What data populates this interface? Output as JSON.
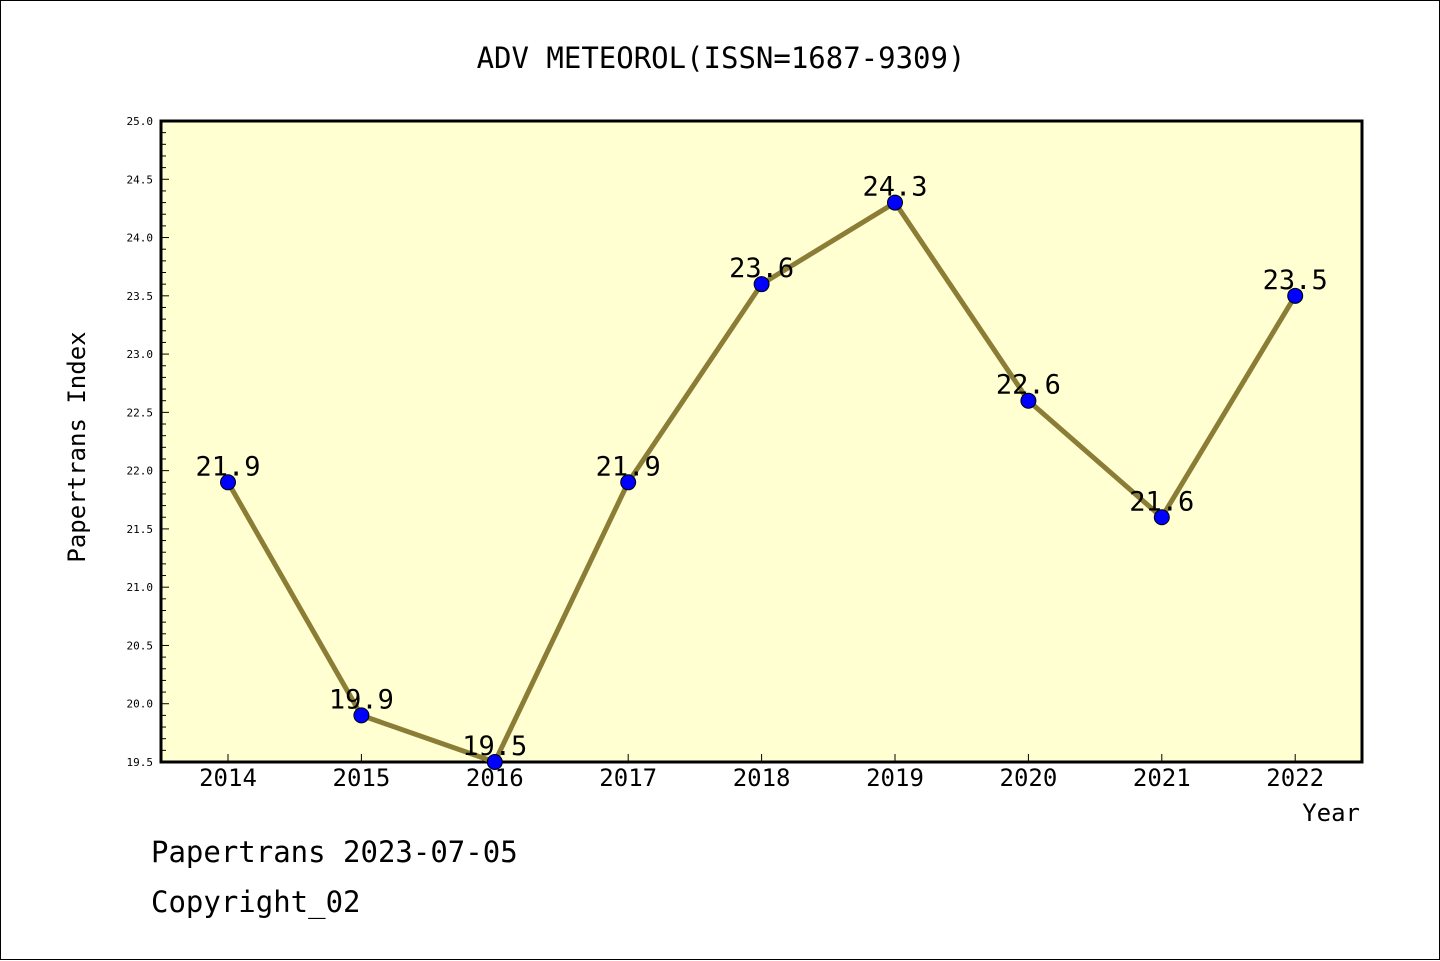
{
  "chart_data": {
    "type": "line",
    "title": "ADV METEOROL(ISSN=1687-9309)",
    "xlabel": "Year",
    "ylabel": "Papertrans Index",
    "categories": [
      "2014",
      "2015",
      "2016",
      "2017",
      "2018",
      "2019",
      "2020",
      "2021",
      "2022"
    ],
    "series": [
      {
        "values": [
          21.9,
          19.9,
          19.5,
          21.9,
          23.6,
          24.3,
          22.6,
          21.6,
          23.5
        ],
        "data_labels": [
          "21.9",
          "19.9",
          "19.5",
          "21.9",
          "23.6",
          "24.3",
          "22.6",
          "21.6",
          "23.5"
        ]
      }
    ],
    "ylim": [
      19.5,
      25.0
    ],
    "yticks": [
      "19.5",
      "20.0",
      "20.5",
      "21.0",
      "21.5",
      "22.0",
      "22.5",
      "23.0",
      "23.5",
      "24.0",
      "24.5",
      "25.0"
    ],
    "grid": false,
    "colors": {
      "plot_background": "#ffffd2",
      "line": "#8b7d35",
      "marker": "#0000ff"
    }
  },
  "footer": {
    "line1": "Papertrans 2023-07-05",
    "line2": "Copyright_02"
  }
}
